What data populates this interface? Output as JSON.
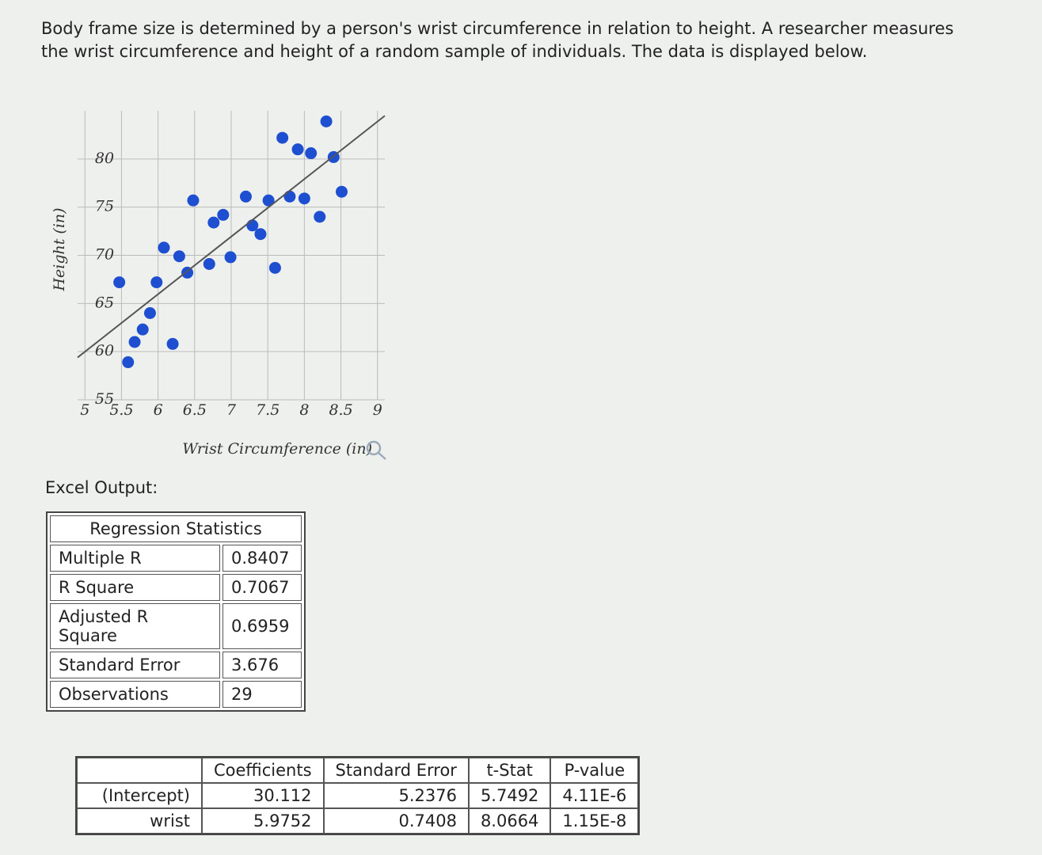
{
  "question": "Body frame size is determined by a person's wrist circumference in relation to height. A researcher measures the wrist circumference and height of a random sample of individuals. The data is displayed below.",
  "chart_data": {
    "type": "scatter",
    "x_label": "Wrist Circumference (in)",
    "y_label": "Height (in)",
    "x": [
      5.59,
      5.47,
      5.68,
      5.79,
      5.89,
      5.98,
      6.08,
      6.2,
      6.29,
      6.4,
      6.48,
      6.7,
      6.76,
      6.89,
      6.99,
      7.2,
      7.29,
      7.4,
      7.51,
      7.6,
      7.7,
      7.8,
      7.91,
      8.0,
      8.09,
      8.21,
      8.3,
      8.4,
      8.51
    ],
    "values": [
      58.9,
      67.2,
      61.0,
      62.3,
      64.0,
      67.2,
      70.8,
      60.8,
      69.9,
      68.2,
      75.7,
      69.1,
      73.4,
      74.2,
      69.8,
      76.1,
      73.1,
      72.2,
      75.7,
      68.7,
      82.2,
      76.1,
      81.0,
      75.9,
      80.6,
      74.0,
      83.9,
      80.2,
      76.6
    ],
    "color": "#1f4fd1",
    "grid": true,
    "xlim": [
      4.9,
      9.1
    ],
    "ylim": [
      55,
      85
    ],
    "xticks": [
      5,
      5.5,
      6,
      6.5,
      7,
      7.5,
      8,
      8.5,
      9
    ],
    "yticks": [
      55,
      60,
      65,
      70,
      75,
      80
    ]
  },
  "excel_label": "Excel Output:",
  "regression_table": {
    "title": "Regression Statistics",
    "rows": [
      [
        "Multiple R",
        "0.8407"
      ],
      [
        "R Square",
        "0.7067"
      ],
      [
        "Adjusted R Square",
        "0.6959"
      ],
      [
        "Standard Error",
        "3.676"
      ],
      [
        "Observations",
        "29"
      ]
    ]
  },
  "coefficients_table": {
    "header": [
      "Coefficients",
      "Standard Error",
      "t-Stat",
      "P-value"
    ],
    "rows": [
      {
        "label": "(Intercept)",
        "cells": [
          "30.112",
          "5.2376",
          "5.7492",
          "4.11E-6"
        ]
      },
      {
        "label": "wrist",
        "cells": [
          "5.9752",
          "0.7408",
          "8.0664",
          "1.15E-8"
        ]
      }
    ]
  }
}
